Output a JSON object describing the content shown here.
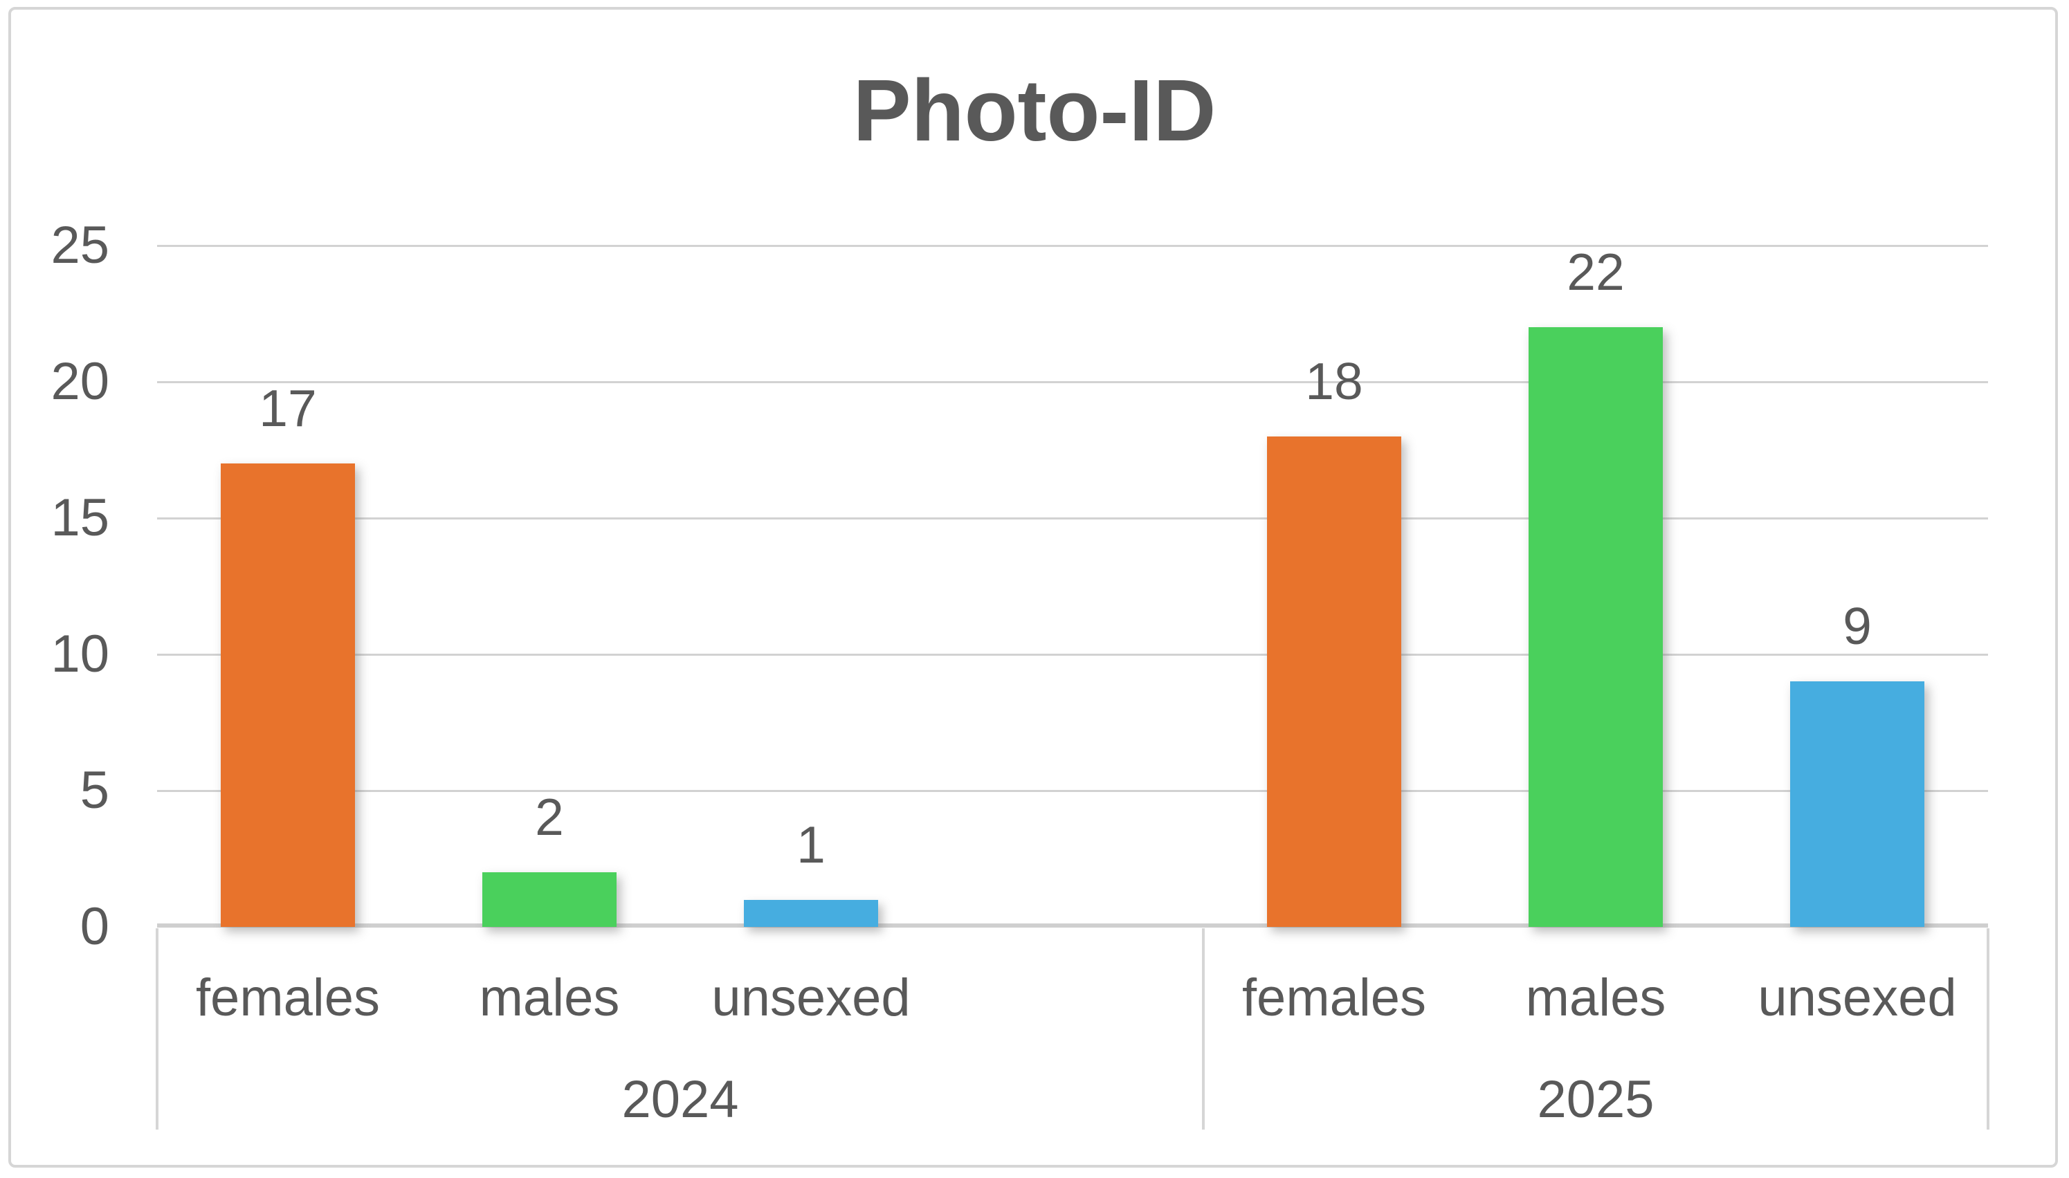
{
  "chart_data": {
    "type": "bar",
    "title": "Photo-ID",
    "x_groups": [
      {
        "label": "2024",
        "categories": [
          "females",
          "males",
          "unsexed"
        ],
        "values": [
          17,
          2,
          1
        ]
      },
      {
        "label": "2025",
        "categories": [
          "females",
          "males",
          "unsexed"
        ],
        "values": [
          18,
          22,
          9
        ]
      }
    ],
    "category_colors": {
      "females": "#E8732C",
      "males": "#4AD05C",
      "unsexed": "#46ADE0"
    },
    "data_labels": [
      17,
      2,
      1,
      18,
      22,
      9
    ],
    "y_ticks": [
      25,
      20,
      15,
      10,
      5,
      0
    ],
    "ylim": [
      0,
      25
    ],
    "grid": true,
    "legend": "none",
    "empty_slot_between_groups": true
  },
  "style": {
    "text_color": "#595959",
    "gridline_color": "#D2D2D2",
    "axis_line_color": "#CFCFCF",
    "frame_border_color": "#D6D6D6",
    "background": "#FFFFFF"
  }
}
